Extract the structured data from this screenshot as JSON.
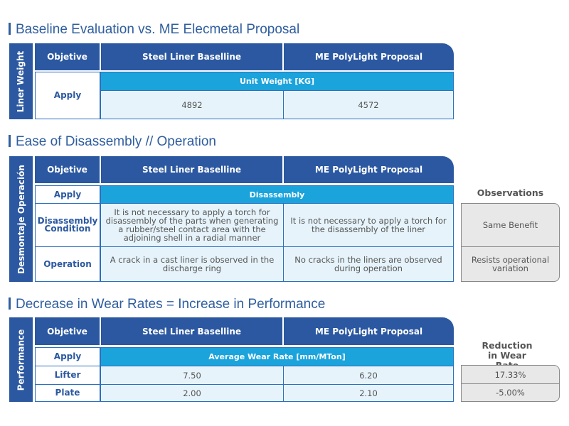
{
  "colors": {
    "dark_blue": "#2b58a0",
    "light_blue": "#1ba3dc",
    "cell_fill": "#e6f3fa",
    "observation_fill": "#e8e8e8"
  },
  "headers": {
    "objective": "Objetive",
    "baseline": "Steel Liner Baselline",
    "proposal": "ME PolyLight Proposal"
  },
  "section1": {
    "title": "Baseline Evaluation vs. ME Elecmetal Proposal",
    "side": "Liner Weight",
    "row_label": "Apply",
    "band": "Unit Weight [KG]",
    "baseline": "4892",
    "proposal": "4572"
  },
  "section2": {
    "title": "Ease of Disassembly // Operation",
    "side": "Desmontaje Operación",
    "apply": "Apply",
    "band": "Disassembly",
    "observations_label": "Observations",
    "rows": [
      {
        "label": "Disassembly Condition",
        "baseline": "It is not necessary to apply a torch for disassembly of the parts when generating a rubber/steel contact area with the adjoining shell in a radial manner",
        "proposal": "It is not necessary to apply a torch for the disassembly of the liner",
        "observation": "Same Benefit"
      },
      {
        "label": "Operation",
        "baseline": "A crack in a cast liner is observed in the discharge ring",
        "proposal": "No cracks in the liners are observed during operation",
        "observation": "Resists operational variation"
      }
    ]
  },
  "section3": {
    "title": "Decrease in Wear Rates = Increase in Performance",
    "side": "Performance",
    "apply": "Apply",
    "band": "Average Wear Rate [mm/MTon]",
    "reduction_label": "Reduction in Wear Rate",
    "rows": [
      {
        "label": "Lifter",
        "baseline": "7.50",
        "proposal": "6.20",
        "reduction": "17.33%"
      },
      {
        "label": "Plate",
        "baseline": "2.00",
        "proposal": "2.10",
        "reduction": "-5.00%"
      }
    ]
  }
}
